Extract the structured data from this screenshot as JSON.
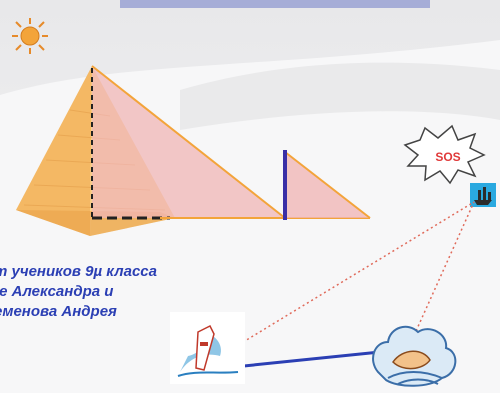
{
  "caption": {
    "line1": "т учеников 9µ класса",
    "line2": "пе Александра и",
    "line3": "еменова Андрея"
  },
  "sos": {
    "label": "SOS"
  },
  "icons": {
    "sun": "sun-icon",
    "pyramid": "pyramid-shape",
    "ship": "ship-icon",
    "lighthouse": "lighthouse-icon",
    "storm": "storm-icon"
  },
  "colors": {
    "pyramid_fill": "#f6c477",
    "shadow_triangle": "#f0b6b6",
    "stick": "#3a2fa6",
    "arrow_blue": "#2b3fb4",
    "dotted_red": "#e06a5a",
    "caption": "#2b3fb4"
  }
}
